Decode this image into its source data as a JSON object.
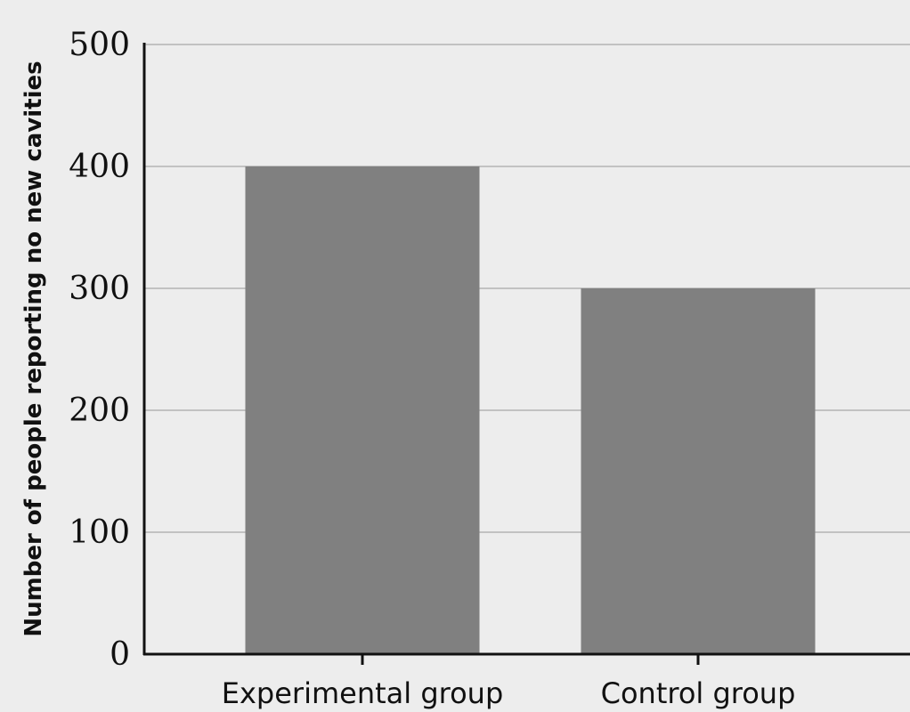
{
  "chart_data": {
    "type": "bar",
    "title": "",
    "xlabel": "",
    "ylabel": "Number of people reporting no new cavities",
    "categories": [
      "Experimental group",
      "Control group"
    ],
    "values": [
      400,
      300
    ],
    "ylim": [
      0,
      500
    ],
    "yticks": [
      0,
      100,
      200,
      300,
      400,
      500
    ],
    "ytick_labels": [
      "0",
      "100",
      "200",
      "300",
      "400",
      "500"
    ],
    "grid": "horizontal",
    "legend": "none"
  },
  "colors": {
    "background": "#ededed",
    "bar": "#808080",
    "gridline": "#b3b3b3",
    "axis": "#111111"
  }
}
